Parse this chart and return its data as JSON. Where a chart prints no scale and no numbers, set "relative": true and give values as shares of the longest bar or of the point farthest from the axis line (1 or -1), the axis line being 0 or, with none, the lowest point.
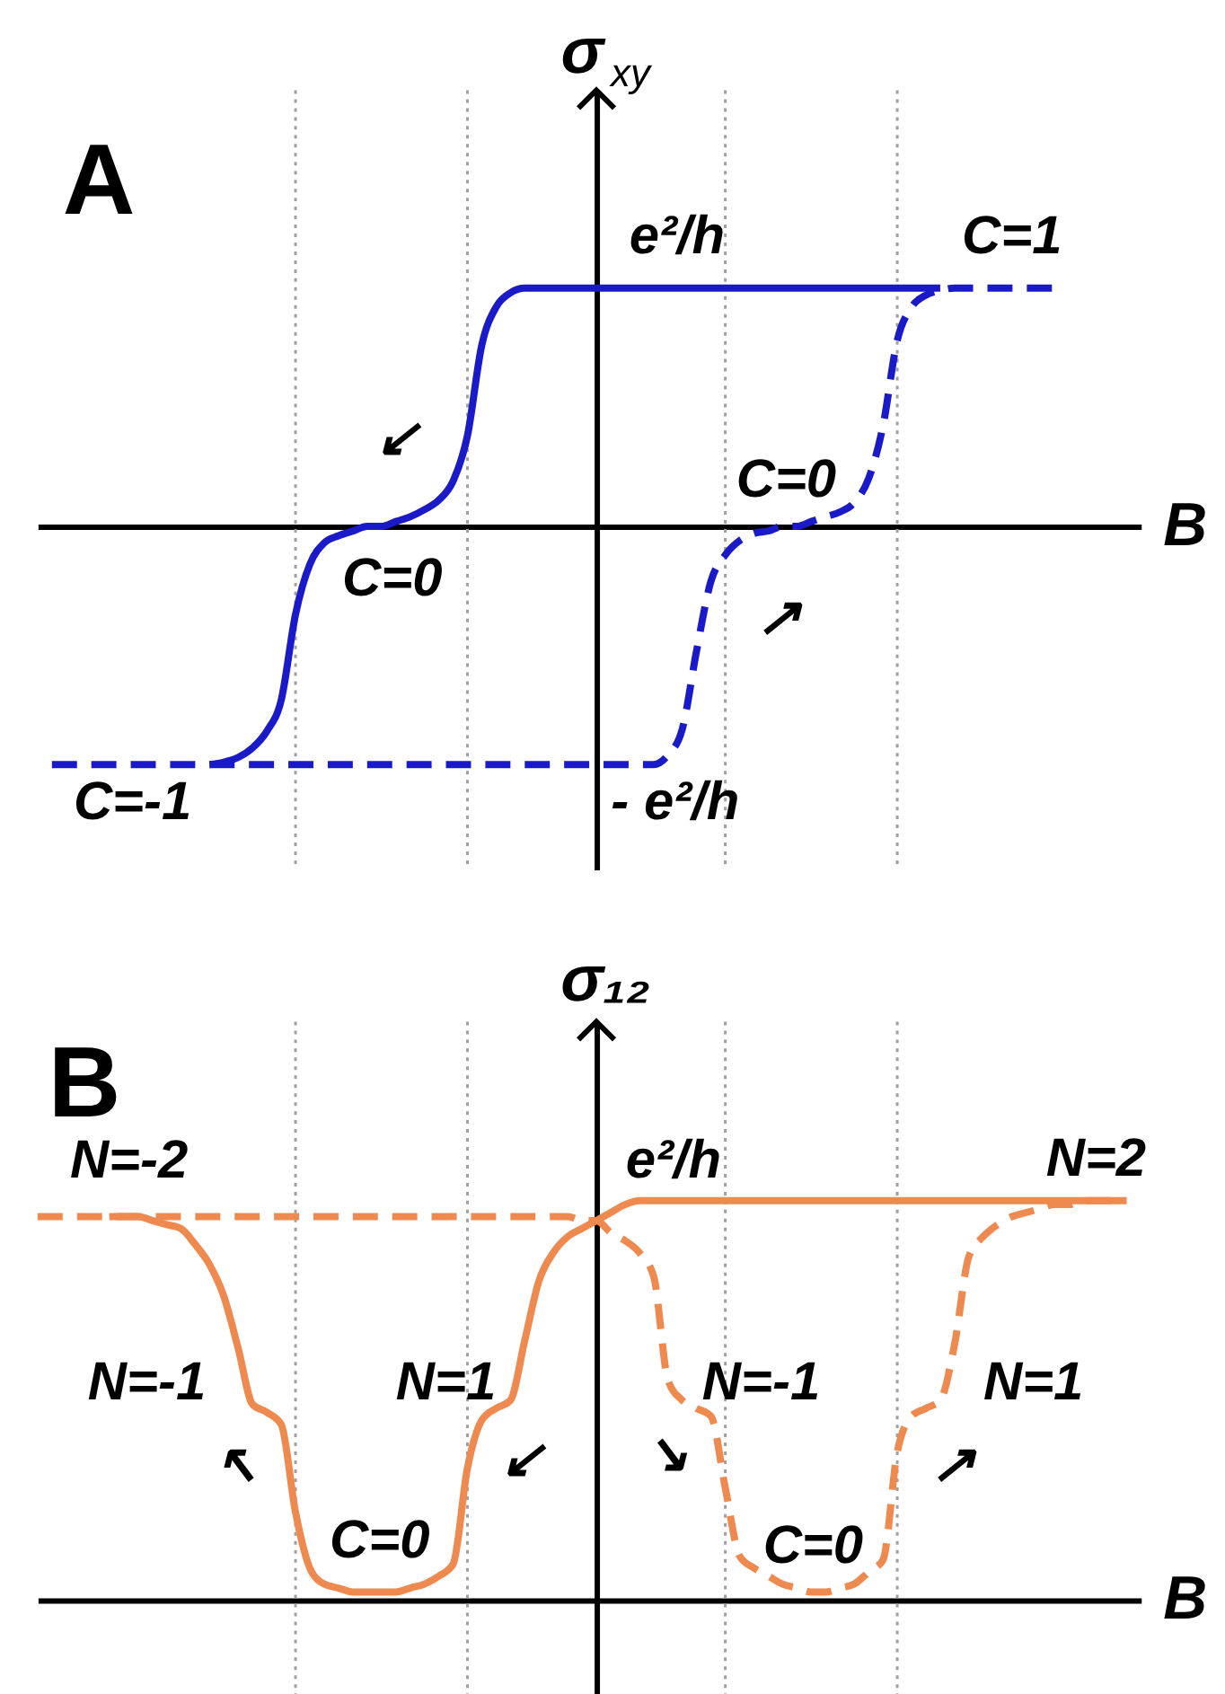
{
  "chart_data": [
    {
      "type": "line",
      "relative": true,
      "title": "A",
      "ylabel": "σ$_{xy}$",
      "xlabel": "B",
      "tick_labels": false,
      "grid": "x",
      "categories": [
        null,
        null,
        null,
        null,
        null,
        null,
        null,
        null,
        null,
        null,
        null,
        null,
        null,
        null,
        null,
        null,
        null,
        null,
        null,
        null,
        null,
        null,
        null,
        null,
        null,
        null,
        null,
        null,
        null,
        null,
        null,
        null,
        null,
        null,
        null,
        null,
        null,
        null,
        null,
        null,
        null,
        null,
        null,
        null,
        null,
        null,
        null,
        null,
        null,
        null,
        null,
        null,
        null,
        null,
        null,
        null,
        null,
        null,
        null,
        null,
        null,
        null,
        null,
        null,
        null,
        null,
        null,
        null,
        null,
        null,
        null,
        null,
        null,
        null,
        null,
        null,
        null,
        null
      ],
      "series": [
        {
          "color": "#1a1ac8",
          "line_style": "solid",
          "values": [
            null,
            null,
            null,
            null,
            null,
            null,
            null,
            null,
            null,
            null,
            null,
            null,
            -1.0,
            -0.99,
            -0.97,
            -0.93,
            -0.86,
            -0.73,
            -0.37,
            -0.16,
            -0.07,
            -0.04,
            -0.02,
            0.0,
            0.0,
            0.02,
            0.04,
            0.07,
            0.11,
            0.19,
            0.38,
            0.76,
            0.92,
            0.98,
            1.0,
            1.0,
            1.0,
            1.0,
            1.0,
            1.0,
            1.0,
            1.0,
            1.0,
            1.0,
            1.0,
            1.0,
            1.0,
            1.0,
            1.0,
            1.0,
            1.0,
            1.0,
            1.0,
            1.0,
            1.0,
            1.0,
            1.0,
            1.0,
            1.0,
            1.0,
            1.0,
            1.0,
            1.0,
            1.0,
            null,
            null,
            null,
            null,
            null,
            null,
            null,
            null,
            null,
            null,
            null,
            null,
            null,
            null
          ]
        },
        {
          "color": "#1a1ac8",
          "line_style": "dashed",
          "values": [
            null,
            -1.0,
            -1.0,
            -1.0,
            -1.0,
            -1.0,
            -1.0,
            -1.0,
            -1.0,
            -1.0,
            -1.0,
            -1.0,
            -1.0,
            -1.0,
            -1.0,
            -1.0,
            -1.0,
            -1.0,
            -1.0,
            -1.0,
            -1.0,
            -1.0,
            -1.0,
            -1.0,
            -1.0,
            -1.0,
            -1.0,
            -1.0,
            -1.0,
            -1.0,
            -1.0,
            -1.0,
            -1.0,
            -1.0,
            -1.0,
            -1.0,
            -1.0,
            -1.0,
            -1.0,
            -1.0,
            -1.0,
            -1.0,
            -1.0,
            -1.0,
            -0.96,
            -0.85,
            -0.52,
            -0.23,
            -0.12,
            -0.06,
            -0.03,
            -0.02,
            0.0,
            0.0,
            0.02,
            0.04,
            0.06,
            0.1,
            0.2,
            0.42,
            0.78,
            0.92,
            0.97,
            0.99,
            1.0,
            1.0,
            1.0,
            1.0,
            1.0,
            1.0,
            1.0,
            1.0,
            null,
            null,
            null,
            null,
            null,
            null
          ]
        }
      ],
      "annotations": [
        "e²/h",
        "- e²/h",
        "C=1",
        "C=0",
        "C=0",
        "C=-1",
        "↙",
        "↗"
      ]
    },
    {
      "type": "line",
      "relative": true,
      "title": "B",
      "ylabel": "σ₁₂",
      "xlabel": "B",
      "tick_labels": false,
      "grid": "x",
      "categories": [
        null,
        null,
        null,
        null,
        null,
        null,
        null,
        null,
        null,
        null,
        null,
        null,
        null,
        null,
        null,
        null,
        null,
        null,
        null,
        null,
        null,
        null,
        null,
        null,
        null,
        null,
        null,
        null,
        null,
        null,
        null,
        null,
        null,
        null,
        null,
        null,
        null,
        null,
        null,
        null,
        null,
        null,
        null,
        null,
        null,
        null,
        null,
        null,
        null,
        null,
        null,
        null,
        null,
        null,
        null,
        null,
        null,
        null,
        null,
        null,
        null,
        null,
        null,
        null,
        null,
        null,
        null,
        null,
        null,
        null,
        null,
        null,
        null,
        null,
        null,
        null,
        null,
        null
      ],
      "series": [
        {
          "color": "#ee8a4f",
          "line_style": "solid",
          "values": [
            null,
            null,
            null,
            null,
            null,
            0.96,
            0.96,
            0.96,
            0.95,
            0.94,
            0.93,
            0.89,
            0.84,
            0.76,
            0.63,
            0.49,
            0.47,
            0.44,
            0.22,
            0.08,
            0.04,
            0.03,
            0.02,
            0.02,
            0.02,
            0.02,
            0.03,
            0.04,
            0.06,
            0.09,
            0.33,
            0.45,
            0.48,
            0.5,
            0.65,
            0.8,
            0.87,
            0.91,
            0.93,
            0.95,
            0.97,
            0.99,
            1.0,
            1.0,
            1.0,
            1.0,
            1.0,
            1.0,
            1.0,
            1.0,
            1.0,
            1.0,
            1.0,
            1.0,
            1.0,
            1.0,
            1.0,
            1.0,
            1.0,
            1.0,
            1.0,
            1.0,
            1.0,
            1.0,
            1.0,
            1.0,
            1.0,
            1.0,
            1.0,
            1.0,
            1.0,
            1.0,
            1.0,
            1.0,
            1.0,
            1.0,
            1.0,
            null
          ]
        },
        {
          "color": "#ee8a4f",
          "line_style": "dashed",
          "values": [
            0.96,
            0.96,
            0.96,
            0.96,
            0.96,
            0.96,
            0.96,
            0.96,
            0.96,
            0.96,
            0.96,
            0.96,
            0.96,
            0.96,
            0.96,
            0.96,
            0.96,
            0.96,
            0.96,
            0.96,
            0.96,
            0.96,
            0.96,
            0.96,
            0.96,
            0.96,
            0.96,
            0.96,
            0.96,
            0.96,
            0.96,
            0.96,
            0.96,
            0.96,
            0.96,
            0.96,
            0.96,
            0.96,
            0.95,
            0.95,
            0.92,
            0.9,
            0.87,
            0.81,
            0.55,
            0.5,
            0.48,
            0.46,
            0.28,
            0.11,
            0.08,
            0.06,
            0.04,
            0.03,
            0.02,
            0.02,
            0.03,
            0.04,
            0.07,
            0.1,
            0.37,
            0.46,
            0.48,
            0.5,
            0.64,
            0.86,
            0.91,
            0.94,
            0.96,
            0.97,
            0.98,
            0.99,
            0.99,
            1.0,
            1.0,
            1.0,
            1.0,
            null
          ]
        }
      ],
      "annotations": [
        "e²/h",
        "N=-2",
        "N=2",
        "N=-1",
        "N=1",
        "N=-1",
        "N=1",
        "C=0",
        "C=0",
        "↖",
        "↙",
        "↘",
        "↗"
      ]
    }
  ]
}
